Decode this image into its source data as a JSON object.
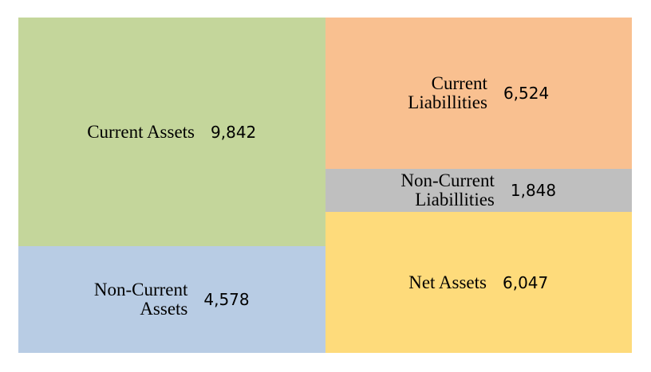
{
  "chart_data": {
    "type": "balance_sheet",
    "columns": [
      {
        "segments": [
          {
            "name": "Current Assets",
            "color": "#c4d69b",
            "value": 9842,
            "value_label": "9,842"
          },
          {
            "name": "Non-Current\nAssets",
            "color": "#b8cce4",
            "value": 4578,
            "value_label": "4,578"
          }
        ]
      },
      {
        "segments": [
          {
            "name": "Current\nLiabillities",
            "color": "#f9c090",
            "value": 6524,
            "value_label": "6,524"
          },
          {
            "name": "Non-Current\nLiabillities",
            "color": "#bfbfbf",
            "value": 1848,
            "value_label": "1,848"
          },
          {
            "name": "Net Assets",
            "color": "#fedb7b",
            "value": 6047,
            "value_label": "6,047"
          }
        ]
      }
    ]
  }
}
